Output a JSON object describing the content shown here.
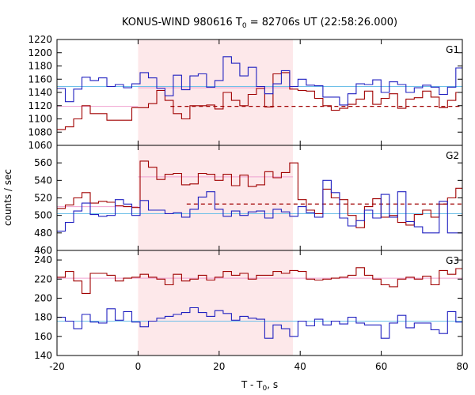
{
  "chart_data": {
    "type": "line",
    "title": "KONUS-WIND 980616 T",
    "title_sub": "0",
    "title_rest": " = 82706s UT (22:58:26.000)",
    "xlabel_main": "T - T",
    "xlabel_sub": "0",
    "xlabel_rest": ", s",
    "ylabel": "counts / sec",
    "xlim": [
      -20,
      80
    ],
    "xticks": [
      "-20",
      "0",
      "20",
      "40",
      "60",
      "80"
    ],
    "highlight_interval": [
      0,
      38.2
    ],
    "colors": {
      "dark_red": "#a00000",
      "blue": "#2020c0",
      "light_blue": "#6ec0e8",
      "pink": "#f0a0d0",
      "highlight": "#fde8ea"
    },
    "panels": [
      {
        "label": "G1",
        "ylim": [
          1060,
          1220
        ],
        "yticks": [
          "1060",
          "1080",
          "1100",
          "1120",
          "1140",
          "1160",
          "1180",
          "1200",
          "1220"
        ],
        "bin_edges": [
          -20,
          -17.95,
          -15.9,
          -13.85,
          -11.8,
          -9.75,
          -7.7,
          -5.65,
          -3.6,
          -1.55,
          0.5,
          2.55,
          4.6,
          6.65,
          8.7,
          10.75,
          12.8,
          14.85,
          16.9,
          18.95,
          21,
          23.05,
          25.1,
          27.15,
          29.2,
          31.25,
          33.3,
          35.35,
          37.4,
          39.45,
          41.5,
          43.55,
          45.6,
          47.65,
          49.7,
          51.75,
          53.8,
          55.85,
          57.9,
          59.95,
          62,
          64.05,
          66.1,
          68.15,
          70.2,
          72.25,
          74.3,
          76.35,
          78.4,
          80.45
        ],
        "series": [
          {
            "color": "dark_red",
            "values": [
              1084,
              1088,
              1100,
              1120,
              1108,
              1108,
              1098,
              1098,
              1098,
              1117,
              1117,
              1123,
              1143,
              1128,
              1108,
              1100,
              1120,
              1120,
              1121,
              1115,
              1140,
              1128,
              1120,
              1137,
              1146,
              1118,
              1168,
              1170,
              1145,
              1143,
              1142,
              1131,
              1120,
              1113,
              1116,
              1122,
              1130,
              1142,
              1122,
              1131,
              1138,
              1116,
              1130,
              1132,
              1142,
              1133,
              1117,
              1128,
              1140
            ]
          },
          {
            "color": "blue",
            "values": [
              1146,
              1126,
              1145,
              1163,
              1158,
              1162,
              1149,
              1152,
              1147,
              1153,
              1170,
              1162,
              1146,
              1135,
              1166,
              1144,
              1165,
              1168,
              1148,
              1158,
              1194,
              1184,
              1165,
              1178,
              1149,
              1138,
              1153,
              1173,
              1149,
              1160,
              1151,
              1150,
              1133,
              1133,
              1121,
              1138,
              1153,
              1152,
              1159,
              1140,
              1156,
              1152,
              1140,
              1147,
              1151,
              1148,
              1137,
              1148,
              1177
            ]
          }
        ],
        "hlines": [
          {
            "color": "light_blue",
            "y": 1149,
            "style": "solid",
            "from": -20,
            "to": 80
          },
          {
            "color": "pink",
            "y": 1119,
            "style": "solid",
            "from": -20,
            "to": 0
          },
          {
            "color": "pink",
            "y": 1147,
            "style": "solid",
            "from": 0,
            "to": 38.2
          },
          {
            "color": "dark_red",
            "y": 1119,
            "style": "dashed",
            "from": 8,
            "to": 80
          }
        ]
      },
      {
        "label": "G2",
        "ylim": [
          460,
          580
        ],
        "yticks": [
          "460",
          "480",
          "500",
          "520",
          "540",
          "560"
        ],
        "bin_edges": [
          -20,
          -17.95,
          -15.9,
          -13.85,
          -11.8,
          -9.75,
          -7.7,
          -5.65,
          -3.6,
          -1.55,
          0.5,
          2.55,
          4.6,
          6.65,
          8.7,
          10.75,
          12.8,
          14.85,
          16.9,
          18.95,
          21,
          23.05,
          25.1,
          27.15,
          29.2,
          31.25,
          33.3,
          35.35,
          37.4,
          39.45,
          41.5,
          43.55,
          45.6,
          47.65,
          49.7,
          51.75,
          53.8,
          55.85,
          57.9,
          59.95,
          62,
          64.05,
          66.1,
          68.15,
          70.2,
          72.25,
          74.3,
          76.35,
          78.4,
          80.45
        ],
        "series": [
          {
            "color": "dark_red",
            "values": [
              508,
              512,
              520,
              526,
              514,
              516,
              515,
              511,
              510,
              509,
              562,
              555,
              541,
              547,
              548,
              535,
              536,
              548,
              547,
              540,
              547,
              534,
              546,
              533,
              535,
              550,
              543,
              549,
              560,
              518,
              506,
              502,
              530,
              520,
              518,
              500,
              486,
              510,
              519,
              498,
              500,
              492,
              489,
              501,
              506,
              498,
              513,
              520,
              531
            ]
          },
          {
            "color": "blue",
            "values": [
              482,
              492,
              505,
              514,
              501,
              499,
              500,
              518,
              513,
              500,
              517,
              506,
              506,
              502,
              503,
              498,
              507,
              521,
              527,
              507,
              499,
              505,
              500,
              504,
              505,
              497,
              507,
              504,
              499,
              510,
              503,
              498,
              540,
              526,
              497,
              488,
              494,
              506,
              497,
              524,
              498,
              527,
              493,
              487,
              480,
              480,
              516,
              480,
              480
            ]
          }
        ],
        "hlines": [
          {
            "color": "light_blue",
            "y": 502,
            "style": "solid",
            "from": -20,
            "to": 80
          },
          {
            "color": "pink",
            "y": 510,
            "style": "solid",
            "from": -20,
            "to": 0
          },
          {
            "color": "pink",
            "y": 544,
            "style": "solid",
            "from": 0,
            "to": 38.2
          },
          {
            "color": "dark_red",
            "y": 513,
            "style": "dashed",
            "from": 12,
            "to": 80
          }
        ]
      },
      {
        "label": "G3",
        "ylim": [
          140,
          250
        ],
        "yticks": [
          "140",
          "160",
          "180",
          "200",
          "220",
          "240"
        ],
        "bin_edges": [
          -20,
          -17.95,
          -15.9,
          -13.85,
          -11.8,
          -9.75,
          -7.7,
          -5.65,
          -3.6,
          -1.55,
          0.5,
          2.55,
          4.6,
          6.65,
          8.7,
          10.75,
          12.8,
          14.85,
          16.9,
          18.95,
          21,
          23.05,
          25.1,
          27.15,
          29.2,
          31.25,
          33.3,
          35.35,
          37.4,
          39.45,
          41.5,
          43.55,
          45.6,
          47.65,
          49.7,
          51.75,
          53.8,
          55.85,
          57.9,
          59.95,
          62,
          64.05,
          66.1,
          68.15,
          70.2,
          72.25,
          74.3,
          76.35,
          78.4,
          80.45
        ],
        "series": [
          {
            "color": "dark_red",
            "values": [
              222,
              228,
              218,
              205,
              226,
              226,
              224,
              218,
              221,
              222,
              225,
              222,
              220,
              214,
              225,
              218,
              220,
              224,
              219,
              222,
              228,
              224,
              226,
              220,
              224,
              224,
              228,
              226,
              229,
              228,
              220,
              219,
              220,
              221,
              222,
              224,
              232,
              224,
              220,
              214,
              212,
              220,
              222,
              220,
              223,
              214,
              229,
              225,
              231
            ]
          },
          {
            "color": "blue",
            "values": [
              180,
              176,
              168,
              183,
              175,
              174,
              189,
              177,
              186,
              175,
              170,
              176,
              179,
              181,
              183,
              185,
              190,
              185,
              181,
              187,
              184,
              177,
              181,
              179,
              178,
              158,
              172,
              168,
              160,
              176,
              171,
              178,
              172,
              176,
              173,
              180,
              174,
              172,
              172,
              158,
              174,
              182,
              169,
              174,
              174,
              167,
              163,
              186,
              175
            ]
          }
        ],
        "hlines": [
          {
            "color": "light_blue",
            "y": 176,
            "style": "solid",
            "from": -20,
            "to": 80
          },
          {
            "color": "pink",
            "y": 221,
            "style": "solid",
            "from": -20,
            "to": 80
          }
        ]
      }
    ]
  }
}
